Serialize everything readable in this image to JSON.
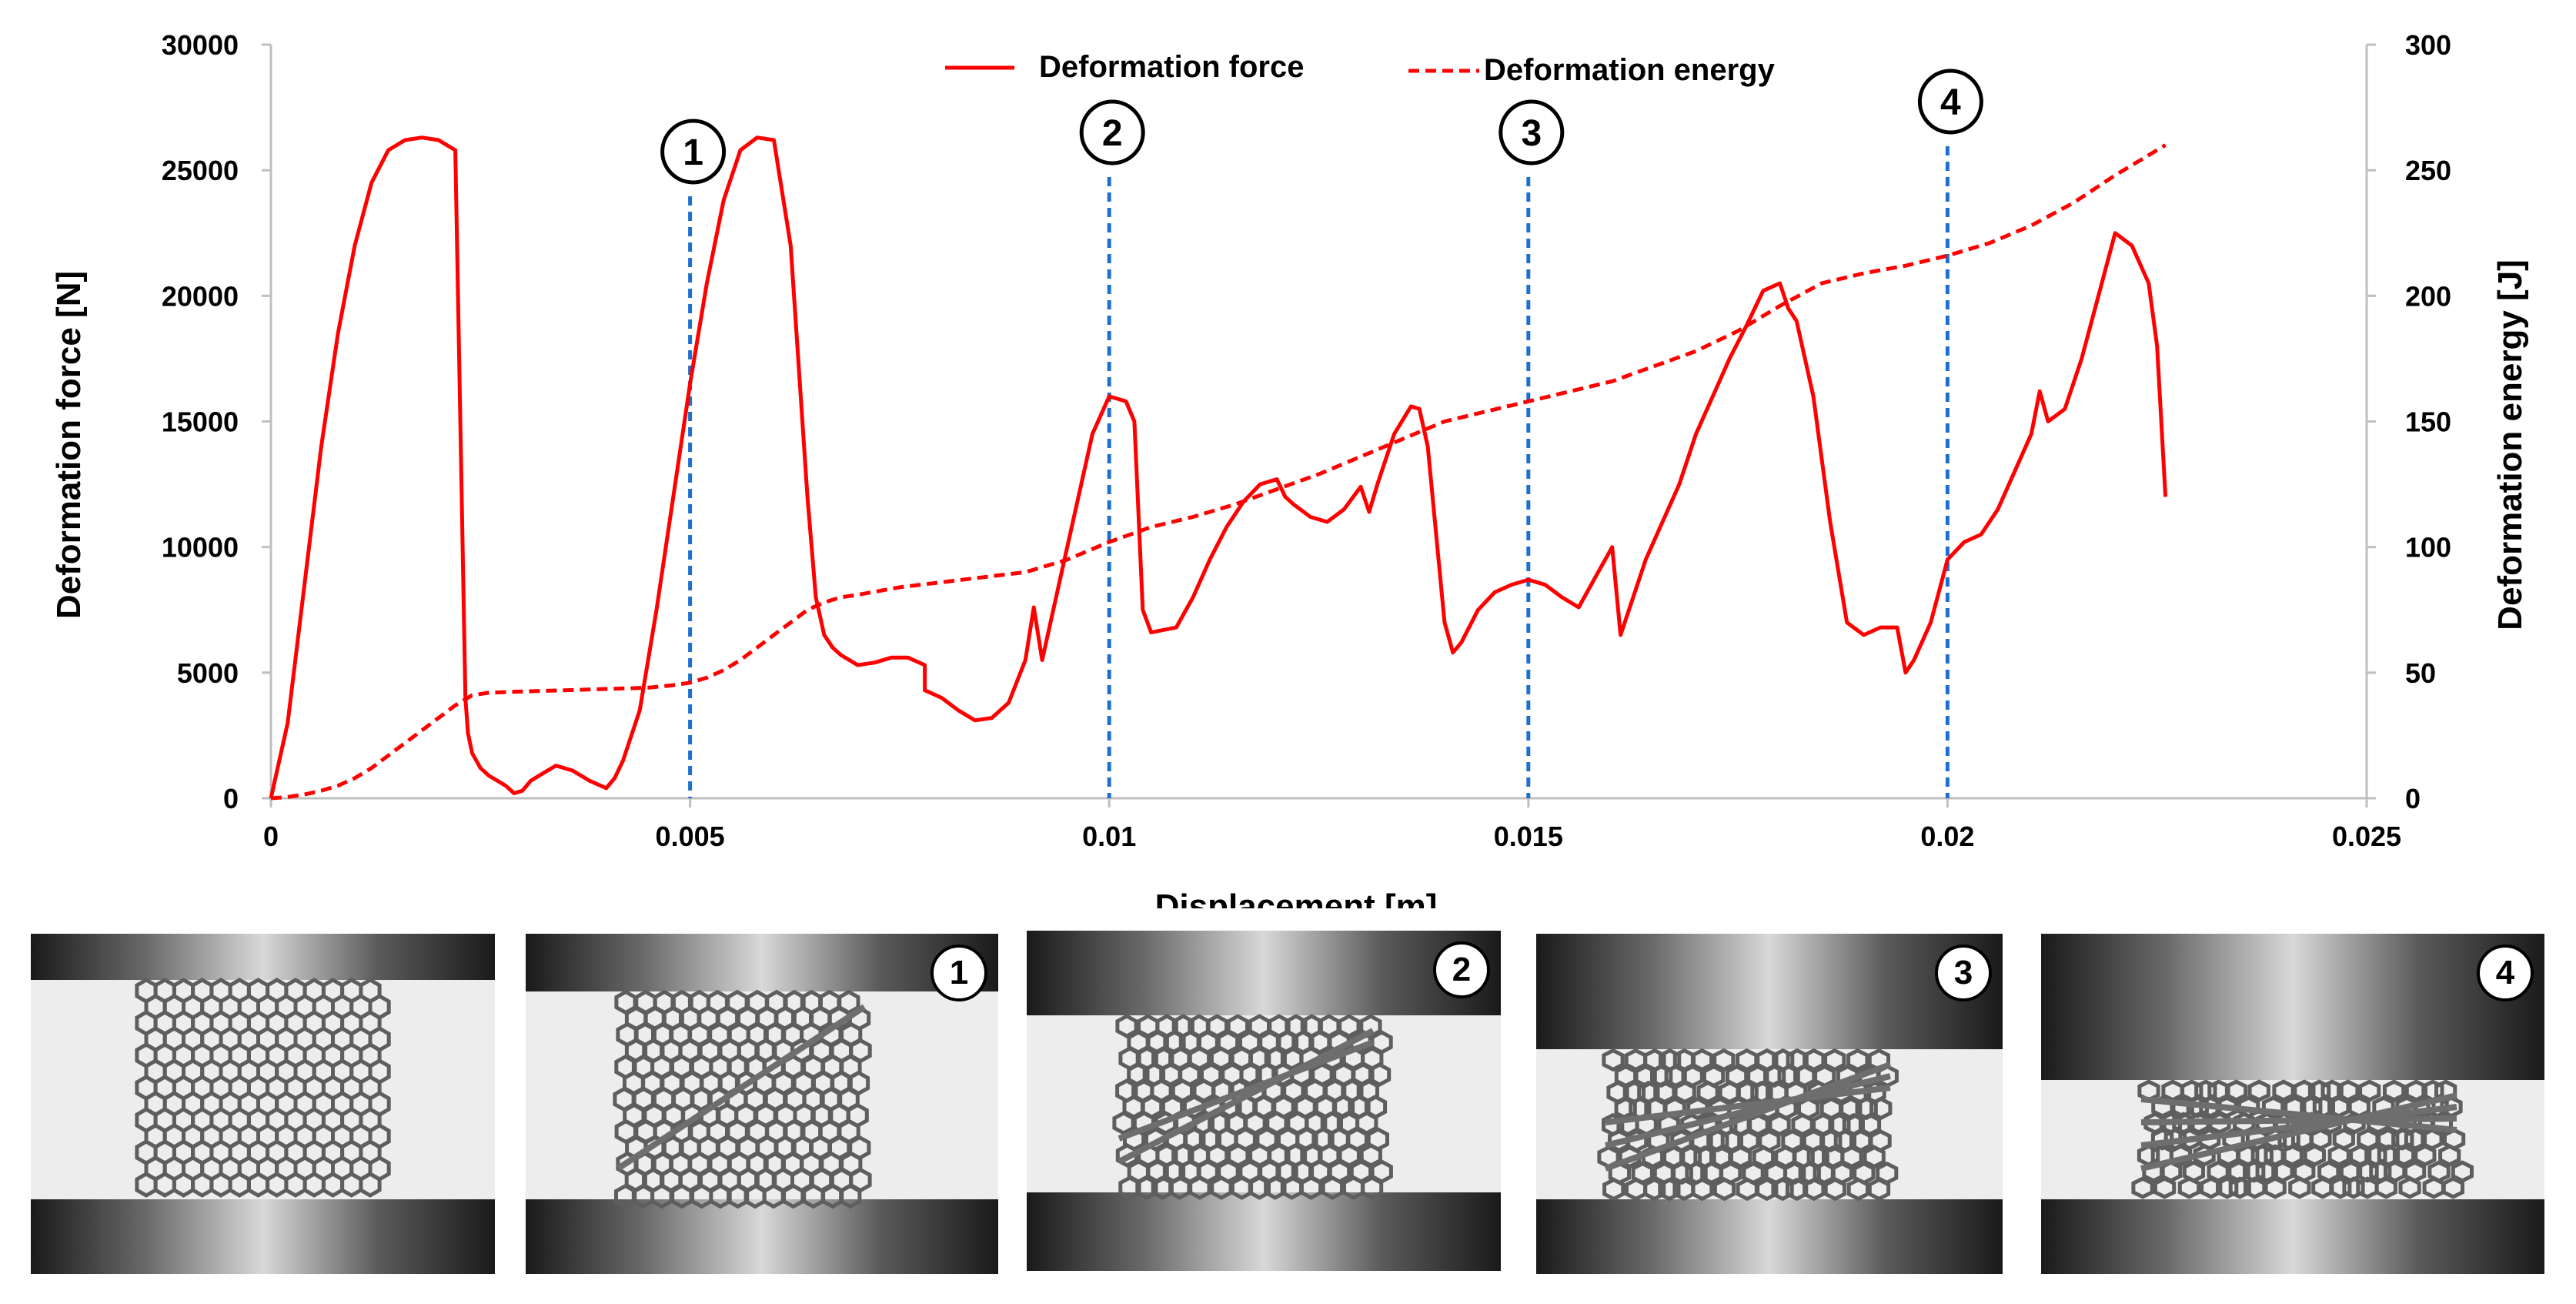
{
  "chart_data": {
    "type": "line",
    "xlabel": "Displacement [m]",
    "ylabel_left": "Deformation force [N]",
    "ylabel_right": "Deformation energy [J]",
    "xlim": [
      0,
      0.025
    ],
    "ylim_left": [
      0,
      30000
    ],
    "ylim_right": [
      0,
      300
    ],
    "x_ticks": [
      "0",
      "0.005",
      "0.01",
      "0.015",
      "0.02",
      "0.025"
    ],
    "x_tick_values": [
      0,
      0.005,
      0.01,
      0.015,
      0.02,
      0.025
    ],
    "y_ticks_left": [
      "0",
      "5000",
      "10000",
      "15000",
      "20000",
      "25000",
      "30000"
    ],
    "y_tick_values_left": [
      0,
      5000,
      10000,
      15000,
      20000,
      25000,
      30000
    ],
    "y_ticks_right": [
      "0",
      "50",
      "100",
      "150",
      "200",
      "250",
      "300"
    ],
    "y_tick_values_right": [
      0,
      50,
      100,
      150,
      200,
      250,
      300
    ],
    "grid": false,
    "legend_position": "top-center",
    "colors": {
      "force": "#ff0000",
      "energy": "#ff0000",
      "markers": "#1f6fd0"
    },
    "series": [
      {
        "name": "Deformation force",
        "axis": "left",
        "style": "solid",
        "x": [
          0,
          0.0002,
          0.0004,
          0.0006,
          0.0008,
          0.001,
          0.0012,
          0.0014,
          0.0016,
          0.0018,
          0.002,
          0.0022,
          0.00232,
          0.00235,
          0.0024,
          0.0025,
          0.0026,
          0.0028,
          0.0029,
          0.003,
          0.0031,
          0.0032,
          0.0034,
          0.0036,
          0.0038,
          0.004,
          0.0041,
          0.0042,
          0.0044,
          0.0046,
          0.0048,
          0.005,
          0.0052,
          0.0054,
          0.0056,
          0.0058,
          0.006,
          0.0062,
          0.0064,
          0.0065,
          0.0066,
          0.0067,
          0.0068,
          0.007,
          0.0072,
          0.0074,
          0.0076,
          0.0078,
          0.0078,
          0.008,
          0.0082,
          0.0084,
          0.0086,
          0.0088,
          0.009,
          0.0091,
          0.0092,
          0.0094,
          0.0096,
          0.0098,
          0.01,
          0.0102,
          0.0103,
          0.0104,
          0.0105,
          0.0108,
          0.011,
          0.0112,
          0.0114,
          0.0116,
          0.0118,
          0.012,
          0.0121,
          0.0122,
          0.0124,
          0.0126,
          0.0128,
          0.013,
          0.0131,
          0.0132,
          0.0134,
          0.0136,
          0.0137,
          0.0138,
          0.014,
          0.0141,
          0.0142,
          0.0144,
          0.0146,
          0.0148,
          0.015,
          0.0152,
          0.0154,
          0.0156,
          0.0158,
          0.016,
          0.0161,
          0.0162,
          0.0164,
          0.0166,
          0.0168,
          0.017,
          0.0172,
          0.0174,
          0.0176,
          0.0178,
          0.018,
          0.0181,
          0.0182,
          0.0184,
          0.0186,
          0.0188,
          0.019,
          0.0192,
          0.0194,
          0.0195,
          0.0196,
          0.0198,
          0.02,
          0.0202,
          0.0204,
          0.0206,
          0.0208,
          0.021,
          0.0211,
          0.0212,
          0.0214,
          0.0216,
          0.0218,
          0.022,
          0.0222,
          0.0224,
          0.0225,
          0.0226
        ],
        "values": [
          0,
          3000,
          8500,
          14000,
          18500,
          22000,
          24500,
          25800,
          26200,
          26300,
          26200,
          25800,
          4000,
          2600,
          1800,
          1200,
          900,
          500,
          200,
          300,
          700,
          900,
          1300,
          1100,
          700,
          400,
          800,
          1500,
          3500,
          7500,
          12000,
          16500,
          20500,
          23800,
          25800,
          26300,
          26200,
          22000,
          12000,
          8000,
          6500,
          6000,
          5700,
          5300,
          5400,
          5600,
          5600,
          5300,
          4300,
          4000,
          3500,
          3100,
          3200,
          3800,
          5500,
          7600,
          5500,
          8500,
          11500,
          14500,
          16000,
          15800,
          15000,
          7500,
          6600,
          6800,
          8000,
          9500,
          10800,
          11800,
          12500,
          12700,
          12000,
          11700,
          11200,
          11000,
          11500,
          12400,
          11400,
          12500,
          14500,
          15600,
          15500,
          14000,
          7000,
          5800,
          6200,
          7500,
          8200,
          8500,
          8700,
          8500,
          8000,
          7600,
          8800,
          10000,
          6500,
          7500,
          9500,
          11000,
          12500,
          14500,
          16000,
          17500,
          18800,
          20200,
          20500,
          19500,
          19000,
          16000,
          11000,
          7000,
          6500,
          6800,
          6800,
          5000,
          5500,
          7000,
          9500,
          10200,
          10500,
          11500,
          13000,
          14500,
          16200,
          15000,
          15500,
          17500,
          20000,
          22500,
          22000,
          20500,
          18000,
          12000
        ],
        "mark_marker_points": []
      },
      {
        "name": "Deformation energy",
        "axis": "right",
        "style": "dashed",
        "x": [
          0,
          0.0002,
          0.0004,
          0.0006,
          0.0008,
          0.001,
          0.0012,
          0.0014,
          0.0016,
          0.0018,
          0.002,
          0.0022,
          0.0024,
          0.0026,
          0.003,
          0.0035,
          0.004,
          0.0045,
          0.0048,
          0.005,
          0.0052,
          0.0054,
          0.0056,
          0.0058,
          0.006,
          0.0062,
          0.0064,
          0.0066,
          0.0068,
          0.007,
          0.0075,
          0.008,
          0.0085,
          0.009,
          0.0095,
          0.01,
          0.0105,
          0.011,
          0.0115,
          0.012,
          0.0125,
          0.013,
          0.0135,
          0.014,
          0.0145,
          0.015,
          0.0155,
          0.016,
          0.0165,
          0.017,
          0.0175,
          0.018,
          0.0185,
          0.019,
          0.0195,
          0.02,
          0.0205,
          0.021,
          0.0215,
          0.022,
          0.0226
        ],
        "values": [
          0,
          0.5,
          1.5,
          3,
          5,
          8,
          12,
          17,
          22,
          27,
          32,
          37,
          41,
          42,
          42.5,
          43,
          43.5,
          44,
          45,
          46,
          48,
          51,
          55,
          60,
          65,
          70,
          75,
          78,
          80,
          81,
          84,
          86,
          88,
          90,
          95,
          102,
          108,
          112,
          117,
          123,
          129,
          136,
          143,
          150,
          154,
          158,
          162,
          166,
          172,
          178,
          186,
          196,
          205,
          209,
          212,
          216,
          221,
          228,
          237,
          248,
          260
        ]
      }
    ],
    "markers": [
      {
        "label": "1",
        "x": 0.005
      },
      {
        "label": "2",
        "x": 0.01
      },
      {
        "label": "3",
        "x": 0.015
      },
      {
        "label": "4",
        "x": 0.02
      }
    ]
  },
  "photos": [
    {
      "badge": ""
    },
    {
      "badge": "1"
    },
    {
      "badge": "2"
    },
    {
      "badge": "3"
    },
    {
      "badge": "4"
    }
  ]
}
